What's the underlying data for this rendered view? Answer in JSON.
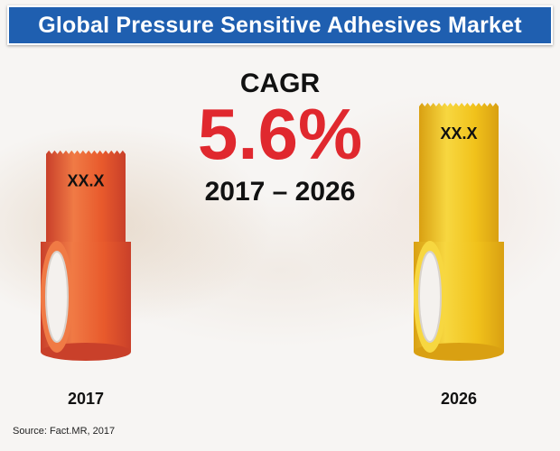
{
  "title": "Global Pressure Sensitive Adhesives Market",
  "cagr": {
    "label": "CAGR",
    "value": "5.6%",
    "period": "2017 – 2026"
  },
  "source": "Source: Fact.MR, 2017",
  "colors": {
    "title_bar": "#1f5fb0",
    "cagr_value": "#e0282e",
    "tape_2017": "#e85a2c",
    "tape_2026": "#f1c21b"
  },
  "chart_data": {
    "type": "bar",
    "categories": [
      "2017",
      "2026"
    ],
    "value_labels": [
      "XX.X",
      "XX.X"
    ],
    "bar_style": "adhesive tape rolls",
    "relative_heights": [
      0.69,
      1.0
    ]
  }
}
